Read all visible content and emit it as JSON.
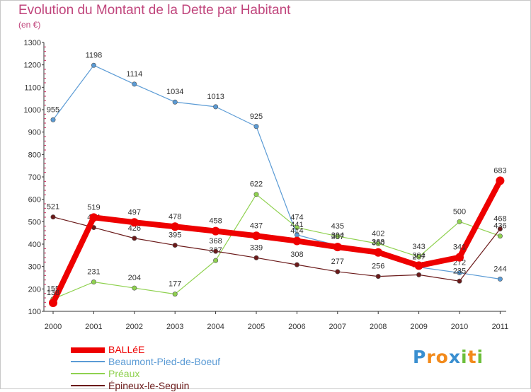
{
  "header": {
    "title": "Evolution du Montant de la Dette par Habitant",
    "subtitle": "(en €)"
  },
  "logo": {
    "letters": [
      "P",
      "r",
      "o",
      "x",
      "i",
      "t",
      "i"
    ],
    "colors": [
      "#3a8fd0",
      "#f28a1c",
      "#f28a1c",
      "#3a8fd0",
      "#6cbf3a",
      "#f28a1c",
      "#6cbf3a"
    ]
  },
  "chart_data": {
    "type": "line",
    "title": "Evolution du Montant de la Dette par Habitant",
    "subtitle": "(en €)",
    "xlabel": "",
    "ylabel": "",
    "x": [
      "2000",
      "2001",
      "2002",
      "2003",
      "2004",
      "2005",
      "2006",
      "2007",
      "2008",
      "2009",
      "2010",
      "2011"
    ],
    "ylim": [
      100,
      1300
    ],
    "yticks": [
      "100",
      "200",
      "300",
      "400",
      "500",
      "600",
      "700",
      "800",
      "900",
      "1000",
      "1100",
      "1200",
      "1300"
    ],
    "grid": false,
    "legend": "bottom-left",
    "series": [
      {
        "name": "BALLéE",
        "color": "#ee0000",
        "values": [
          138,
          519,
          497,
          478,
          458,
          437,
          414,
          387,
          363,
          304,
          341,
          683
        ],
        "labels": [
          "138",
          "519",
          "497",
          "478",
          "458",
          "437",
          "414",
          "387",
          "363",
          "304",
          "341",
          "683"
        ]
      },
      {
        "name": "Beaumont-Pied-de-Boeuf",
        "color": "#5b9bd5",
        "values": [
          955,
          1198,
          1114,
          1034,
          1013,
          925,
          441,
          394,
          360,
          297,
          272,
          244
        ],
        "labels": [
          "955",
          "1198",
          "1114",
          "1034",
          "1013",
          "925",
          "441",
          "394",
          "360",
          "297",
          "272",
          "244"
        ]
      },
      {
        "name": "Préaux",
        "color": "#8fd14f",
        "values": [
          155,
          231,
          204,
          177,
          327,
          622,
          474,
          435,
          402,
          343,
          500,
          436
        ],
        "labels": [
          "155",
          "231",
          "204",
          "177",
          "327",
          "622",
          "474",
          "435",
          "402",
          "343",
          "500",
          "436"
        ]
      },
      {
        "name": "Épineux-le-Seguin",
        "color": "#6b1a1a",
        "values": [
          521,
          474,
          426,
          395,
          368,
          339,
          308,
          277,
          256,
          263,
          235,
          468
        ],
        "labels": [
          "521",
          "474",
          "426",
          "395",
          "368",
          "339",
          "308",
          "277",
          "256",
          "263",
          "235",
          "468"
        ]
      }
    ]
  }
}
